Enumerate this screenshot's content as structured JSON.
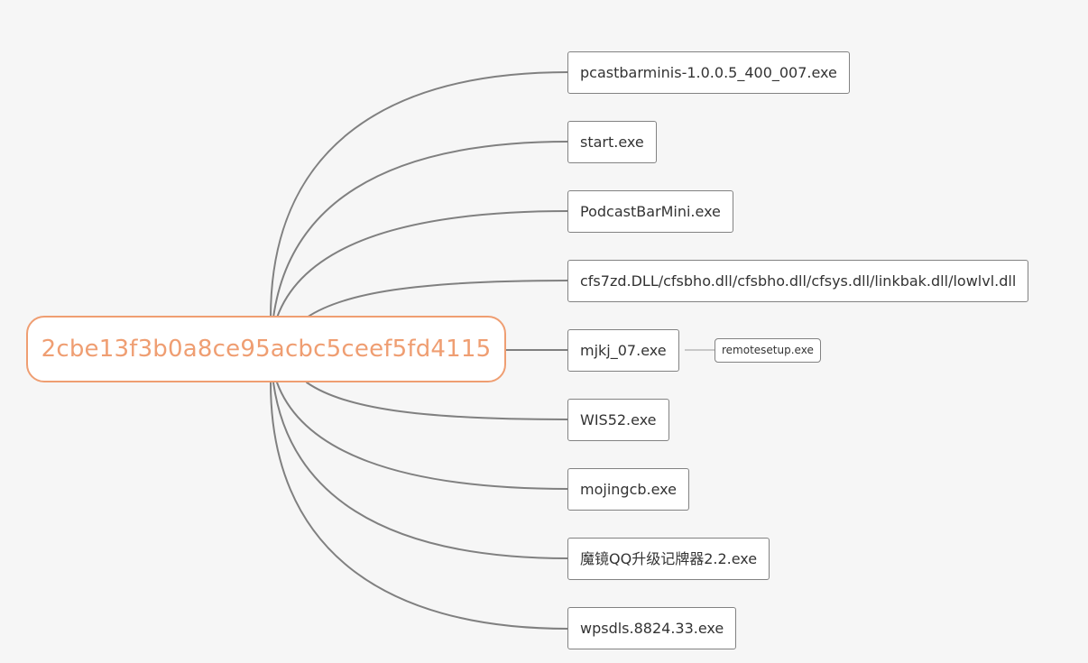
{
  "root": {
    "label": "2cbe13f3b0a8ce95acbc5ceef5fd4115"
  },
  "children": [
    "pcastbarminis-1.0.0.5_400_007.exe",
    "start.exe",
    "PodcastBarMini.exe",
    "cfs7zd.DLL/cfsbho.dll/cfsbho.dll/cfsys.dll/linkbak.dll/lowlvl.dll",
    "mjkj_07.exe",
    "WIS52.exe",
    "mojingcb.exe",
    "魔镜QQ升级记牌器2.2.exe",
    "wpsdls.8824.33.exe"
  ],
  "grandchild": {
    "label": "remotesetup.exe"
  },
  "colors": {
    "background": "#f6f6f6",
    "root_border": "#ef9e72",
    "root_text": "#ef9e72",
    "node_border": "#828282",
    "connector": "#808080"
  }
}
